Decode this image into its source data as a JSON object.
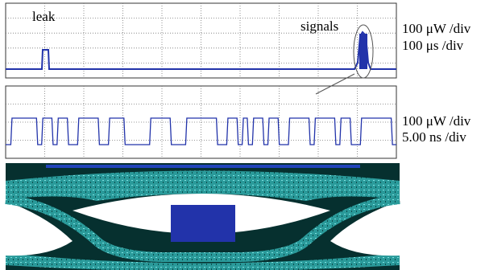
{
  "panel_top": {
    "annotations": [
      "leak",
      "signals"
    ],
    "scale": [
      "100 μW /div",
      "100 μs /div"
    ]
  },
  "panel_middle": {
    "scale": [
      "100 μW /div",
      "5.00 ns /div"
    ]
  }
}
